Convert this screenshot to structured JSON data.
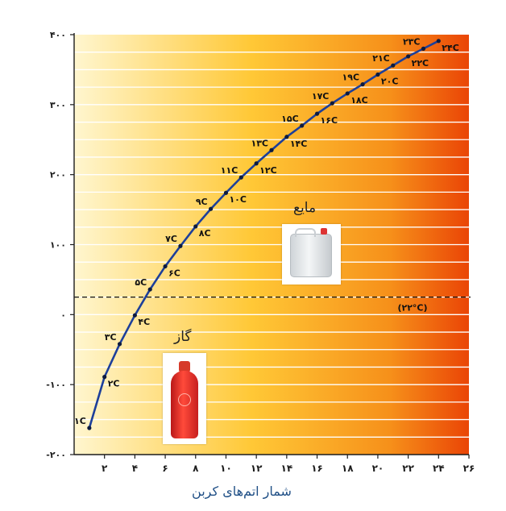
{
  "chart_data": {
    "type": "line",
    "xlabel": "شمار اتم‌های کربن",
    "ylabel": "",
    "xlim": [
      0,
      26
    ],
    "ylim": [
      -200,
      400
    ],
    "x_ticks": [
      {
        "value": 2,
        "label": "۲"
      },
      {
        "value": 4,
        "label": "۴"
      },
      {
        "value": 6,
        "label": "۶"
      },
      {
        "value": 8,
        "label": "۸"
      },
      {
        "value": 10,
        "label": "۱۰"
      },
      {
        "value": 12,
        "label": "۱۲"
      },
      {
        "value": 14,
        "label": "۱۴"
      },
      {
        "value": 16,
        "label": "۱۶"
      },
      {
        "value": 18,
        "label": "۱۸"
      },
      {
        "value": 20,
        "label": "۲۰"
      },
      {
        "value": 22,
        "label": "۲۲"
      },
      {
        "value": 24,
        "label": "۲۴"
      },
      {
        "value": 26,
        "label": "۲۶"
      }
    ],
    "y_ticks": [
      {
        "value": 400,
        "label": "۴۰۰"
      },
      {
        "value": 300,
        "label": "۳۰۰"
      },
      {
        "value": 200,
        "label": "۲۰۰"
      },
      {
        "value": 100,
        "label": "۱۰۰"
      },
      {
        "value": 0,
        "label": "۰"
      },
      {
        "value": -100,
        "label": "-۱۰۰"
      },
      {
        "value": -200,
        "label": "-۲۰۰"
      }
    ],
    "grid": true,
    "series": [
      {
        "x": [
          1,
          2,
          3,
          4,
          5,
          6,
          7,
          8,
          9,
          10,
          11,
          12,
          13,
          14,
          15,
          16,
          17,
          18,
          19,
          20,
          21,
          22,
          23,
          24
        ],
        "y": [
          -162,
          -89,
          -42,
          -1,
          36,
          69,
          98,
          126,
          151,
          174,
          196,
          216,
          235,
          254,
          270,
          287,
          302,
          316,
          329,
          343,
          356,
          369,
          380,
          391
        ],
        "labels": [
          "۱C",
          "۲C",
          "۳C",
          "۴C",
          "۵C",
          "۶C",
          "۷C",
          "۸C",
          "۹C",
          "۱۰C",
          "۱۱C",
          "۱۲C",
          "۱۳C",
          "۱۴C",
          "۱۵C",
          "۱۶C",
          "۱۷C",
          "۱۸C",
          "۱۹C",
          "۲۰C",
          "۲۱C",
          "۲۲C",
          "۲۳C",
          "۲۴C"
        ]
      }
    ],
    "reference_line": {
      "y": 25,
      "label": "(۲۲°C)"
    },
    "annotations": {
      "gas": "گاز",
      "liquid": "مایع"
    },
    "colors": {
      "curve": "#1d3f9a",
      "gradient_start": "#fff4c2",
      "gradient_mid": "#ffc433",
      "gradient_end": "#ee4a06",
      "grid": "#ffffff",
      "axis": "#1c1c1c"
    }
  }
}
